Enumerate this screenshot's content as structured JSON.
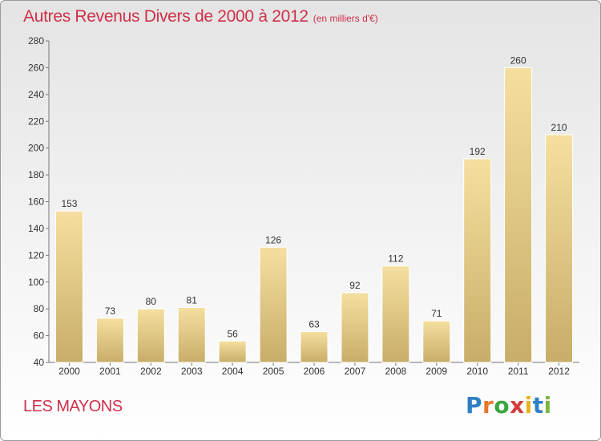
{
  "title": "Autres Revenus Divers de 2000 à 2012",
  "subtitle": "(en milliers d'€)",
  "town": "LES MAYONS",
  "logo_letters": [
    "P",
    "r",
    "o",
    "x",
    "i",
    "t",
    "i"
  ],
  "colors": {
    "title": "#d0304a",
    "bar_light": "#f5dfa0",
    "bar_dark": "#c8ad68",
    "axis": "#777777"
  },
  "chart_data": {
    "type": "bar",
    "categories": [
      "2000",
      "2001",
      "2002",
      "2003",
      "2004",
      "2005",
      "2006",
      "2007",
      "2008",
      "2009",
      "2010",
      "2011",
      "2012"
    ],
    "values": [
      153,
      73,
      80,
      81,
      56,
      126,
      63,
      92,
      112,
      71,
      192,
      260,
      210
    ],
    "yticks": [
      40,
      60,
      80,
      100,
      120,
      140,
      160,
      180,
      200,
      220,
      240,
      260,
      280
    ],
    "ylim": [
      40,
      280
    ],
    "grid": false,
    "legend": "none"
  }
}
